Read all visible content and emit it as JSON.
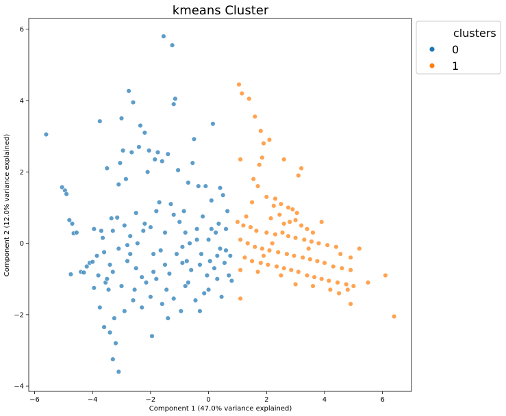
{
  "chart_data": {
    "type": "scatter",
    "title": "kmeans Cluster",
    "xlabel": "Component 1 (47.0% variance explained)",
    "ylabel": "Component 2 (12.0% variance explained)",
    "xlim": [
      -6.2,
      7.0
    ],
    "ylim": [
      -4.15,
      6.3
    ],
    "xticks": [
      -6,
      -4,
      -2,
      0,
      2,
      4,
      6
    ],
    "yticks": [
      -4,
      -2,
      0,
      2,
      4,
      6
    ],
    "xtick_labels": [
      "−6",
      "−4",
      "−2",
      "0",
      "2",
      "4",
      "6"
    ],
    "ytick_labels": [
      "−4",
      "−2",
      "0",
      "2",
      "4",
      "6"
    ],
    "grid": false,
    "legend": {
      "title": "clusters",
      "placement": "outside-top-right"
    },
    "series": [
      {
        "name": "0",
        "color": "#1f77b4",
        "points": [
          [
            -5.6,
            3.05
          ],
          [
            -5.05,
            1.57
          ],
          [
            -4.95,
            1.48
          ],
          [
            -4.9,
            1.38
          ],
          [
            -4.8,
            0.65
          ],
          [
            -4.7,
            0.55
          ],
          [
            -4.65,
            0.28
          ],
          [
            -4.55,
            0.3
          ],
          [
            -4.75,
            -0.87
          ],
          [
            -4.4,
            -0.8
          ],
          [
            -4.3,
            -0.82
          ],
          [
            -4.2,
            -0.65
          ],
          [
            -4.1,
            -0.55
          ],
          [
            -4.0,
            -0.52
          ],
          [
            -3.95,
            0.4
          ],
          [
            -3.85,
            -0.35
          ],
          [
            -3.75,
            3.42
          ],
          [
            -3.7,
            0.35
          ],
          [
            -3.65,
            0.15
          ],
          [
            -3.6,
            -0.25
          ],
          [
            -3.55,
            -1.1
          ],
          [
            -3.5,
            2.1
          ],
          [
            -3.45,
            -1.3
          ],
          [
            -3.4,
            -0.6
          ],
          [
            -3.35,
            0.7
          ],
          [
            -3.3,
            -0.8
          ],
          [
            -3.25,
            -2.1
          ],
          [
            -3.2,
            -2.8
          ],
          [
            -3.15,
            0.72
          ],
          [
            -3.1,
            1.65
          ],
          [
            -3.05,
            2.25
          ],
          [
            -3.0,
            3.5
          ],
          [
            -2.95,
            2.6
          ],
          [
            -2.9,
            -1.9
          ],
          [
            -2.85,
            1.8
          ],
          [
            -2.8,
            -0.5
          ],
          [
            -2.75,
            4.27
          ],
          [
            -2.7,
            0.2
          ],
          [
            -2.65,
            2.55
          ],
          [
            -2.6,
            3.95
          ],
          [
            -2.55,
            -1.3
          ],
          [
            -2.5,
            -0.7
          ],
          [
            -2.45,
            0.0
          ],
          [
            -2.4,
            2.7
          ],
          [
            -2.35,
            3.3
          ],
          [
            -2.3,
            -0.95
          ],
          [
            -2.25,
            0.35
          ],
          [
            -2.2,
            3.1
          ],
          [
            -2.15,
            -1.1
          ],
          [
            -2.1,
            2.0
          ],
          [
            -2.05,
            2.6
          ],
          [
            -2.0,
            0.45
          ],
          [
            -1.95,
            -2.6
          ],
          [
            -1.9,
            -0.3
          ],
          [
            -1.85,
            2.35
          ],
          [
            -1.8,
            -1.0
          ],
          [
            -1.75,
            2.55
          ],
          [
            -1.7,
            1.15
          ],
          [
            -1.65,
            -0.2
          ],
          [
            -1.6,
            2.3
          ],
          [
            -1.55,
            5.8
          ],
          [
            -1.5,
            -0.6
          ],
          [
            -1.45,
            -1.3
          ],
          [
            -1.4,
            2.5
          ],
          [
            -1.35,
            -0.85
          ],
          [
            -1.3,
            1.1
          ],
          [
            -1.25,
            5.55
          ],
          [
            -1.2,
            3.9
          ],
          [
            -1.15,
            4.05
          ],
          [
            -1.1,
            -0.3
          ],
          [
            -1.05,
            2.05
          ],
          [
            -1.0,
            0.6
          ],
          [
            -0.95,
            -1.9
          ],
          [
            -0.9,
            -0.1
          ],
          [
            -0.85,
            0.9
          ],
          [
            -0.8,
            -1.2
          ],
          [
            -0.75,
            -0.5
          ],
          [
            -0.7,
            1.7
          ],
          [
            -0.65,
            0.0
          ],
          [
            -0.6,
            -0.75
          ],
          [
            -0.55,
            2.25
          ],
          [
            -0.5,
            2.92
          ],
          [
            -0.45,
            -1.6
          ],
          [
            -0.4,
            0.4
          ],
          [
            -0.35,
            1.6
          ],
          [
            -0.3,
            -0.6
          ],
          [
            -0.25,
            -0.3
          ],
          [
            -0.2,
            0.75
          ],
          [
            -0.15,
            -1.4
          ],
          [
            -0.1,
            1.6
          ],
          [
            -0.05,
            -0.9
          ],
          [
            0.0,
            0.1
          ],
          [
            0.05,
            -0.5
          ],
          [
            0.1,
            1.2
          ],
          [
            0.15,
            3.35
          ],
          [
            0.2,
            -0.7
          ],
          [
            0.25,
            0.3
          ],
          [
            0.3,
            -1.0
          ],
          [
            0.35,
            0.55
          ],
          [
            0.4,
            1.55
          ],
          [
            0.45,
            -1.5
          ],
          [
            0.5,
            1.35
          ],
          [
            0.55,
            -0.55
          ],
          [
            0.6,
            -0.2
          ],
          [
            0.65,
            0.9
          ],
          [
            0.7,
            -0.9
          ],
          [
            0.75,
            -0.35
          ],
          [
            0.8,
            -1.05
          ],
          [
            -3.8,
            -0.9
          ],
          [
            -3.5,
            -1.0
          ],
          [
            -3.0,
            -1.2
          ],
          [
            -2.8,
            -0.05
          ],
          [
            -2.6,
            -1.6
          ],
          [
            -2.3,
            -1.8
          ],
          [
            -2.0,
            -1.5
          ],
          [
            -1.9,
            -0.8
          ],
          [
            -1.6,
            -1.7
          ],
          [
            -1.4,
            -2.1
          ],
          [
            -1.2,
            -1.55
          ],
          [
            -0.9,
            -0.55
          ],
          [
            -0.7,
            -1.1
          ],
          [
            -0.3,
            -1.9
          ],
          [
            0.0,
            -1.3
          ],
          [
            0.3,
            -0.35
          ],
          [
            -3.3,
            0.35
          ],
          [
            -3.1,
            -0.15
          ],
          [
            -2.9,
            0.5
          ],
          [
            -2.7,
            -0.3
          ],
          [
            -2.5,
            0.85
          ],
          [
            -2.2,
            0.55
          ],
          [
            -1.8,
            0.9
          ],
          [
            -1.5,
            0.3
          ],
          [
            -1.2,
            0.8
          ],
          [
            -0.8,
            0.3
          ],
          [
            -0.4,
            0.1
          ],
          [
            0.1,
            0.4
          ],
          [
            0.4,
            -0.15
          ],
          [
            0.6,
            0.4
          ],
          [
            -3.4,
            -2.5
          ],
          [
            -3.1,
            -3.6
          ],
          [
            -3.3,
            -3.25
          ],
          [
            -3.6,
            -2.35
          ],
          [
            -3.75,
            -1.8
          ],
          [
            -3.95,
            -1.25
          ]
        ]
      },
      {
        "name": "1",
        "color": "#ff7f0e",
        "points": [
          [
            1.05,
            4.45
          ],
          [
            1.15,
            4.2
          ],
          [
            1.4,
            4.05
          ],
          [
            1.1,
            2.35
          ],
          [
            1.6,
            3.55
          ],
          [
            1.8,
            3.15
          ],
          [
            1.9,
            2.8
          ],
          [
            2.1,
            2.9
          ],
          [
            1.75,
            2.2
          ],
          [
            1.85,
            2.4
          ],
          [
            2.6,
            2.35
          ],
          [
            3.2,
            2.1
          ],
          [
            3.1,
            1.9
          ],
          [
            1.55,
            1.8
          ],
          [
            1.7,
            1.6
          ],
          [
            2.0,
            1.3
          ],
          [
            2.3,
            1.25
          ],
          [
            1.5,
            1.15
          ],
          [
            2.25,
            1.05
          ],
          [
            2.5,
            1.1
          ],
          [
            2.75,
            1.0
          ],
          [
            2.9,
            0.95
          ],
          [
            3.05,
            0.85
          ],
          [
            1.3,
            0.75
          ],
          [
            2.15,
            0.7
          ],
          [
            2.45,
            0.8
          ],
          [
            2.6,
            0.55
          ],
          [
            2.8,
            0.6
          ],
          [
            3.0,
            0.65
          ],
          [
            3.2,
            0.5
          ],
          [
            3.4,
            0.4
          ],
          [
            1.0,
            0.6
          ],
          [
            1.2,
            0.5
          ],
          [
            1.45,
            0.45
          ],
          [
            1.65,
            0.35
          ],
          [
            2.0,
            0.3
          ],
          [
            2.3,
            0.25
          ],
          [
            2.55,
            0.3
          ],
          [
            2.75,
            0.2
          ],
          [
            3.0,
            0.15
          ],
          [
            3.3,
            0.1
          ],
          [
            3.55,
            0.05
          ],
          [
            3.8,
            0.0
          ],
          [
            4.1,
            -0.05
          ],
          [
            4.4,
            -0.1
          ],
          [
            1.1,
            0.1
          ],
          [
            1.35,
            0.0
          ],
          [
            1.6,
            -0.1
          ],
          [
            1.85,
            -0.15
          ],
          [
            2.1,
            -0.2
          ],
          [
            2.4,
            -0.25
          ],
          [
            2.7,
            -0.3
          ],
          [
            2.95,
            -0.35
          ],
          [
            3.25,
            -0.4
          ],
          [
            3.5,
            -0.45
          ],
          [
            3.75,
            -0.5
          ],
          [
            4.0,
            -0.55
          ],
          [
            4.3,
            -0.65
          ],
          [
            4.6,
            -0.7
          ],
          [
            4.9,
            -0.75
          ],
          [
            1.25,
            -0.4
          ],
          [
            1.5,
            -0.5
          ],
          [
            1.8,
            -0.55
          ],
          [
            2.05,
            -0.6
          ],
          [
            2.35,
            -0.65
          ],
          [
            2.6,
            -0.7
          ],
          [
            2.85,
            -0.75
          ],
          [
            3.1,
            -0.8
          ],
          [
            3.4,
            -0.9
          ],
          [
            3.65,
            -0.95
          ],
          [
            3.9,
            -1.0
          ],
          [
            4.15,
            -1.05
          ],
          [
            4.45,
            -1.1
          ],
          [
            4.75,
            -1.15
          ],
          [
            5.0,
            -1.2
          ],
          [
            1.1,
            -0.75
          ],
          [
            1.7,
            -0.8
          ],
          [
            2.5,
            -0.9
          ],
          [
            3.0,
            -1.15
          ],
          [
            3.6,
            -1.2
          ],
          [
            4.2,
            -1.3
          ],
          [
            4.5,
            -1.4
          ],
          [
            4.8,
            -1.3
          ],
          [
            5.5,
            -1.1
          ],
          [
            6.1,
            -0.9
          ],
          [
            6.4,
            -2.05
          ],
          [
            4.9,
            -1.7
          ],
          [
            1.1,
            -1.55
          ],
          [
            5.2,
            -0.15
          ],
          [
            4.9,
            -0.4
          ],
          [
            3.9,
            0.6
          ],
          [
            3.6,
            0.3
          ],
          [
            2.2,
            0.0
          ],
          [
            1.9,
            -0.35
          ],
          [
            3.45,
            -0.15
          ],
          [
            4.55,
            -0.3
          ]
        ]
      }
    ]
  }
}
